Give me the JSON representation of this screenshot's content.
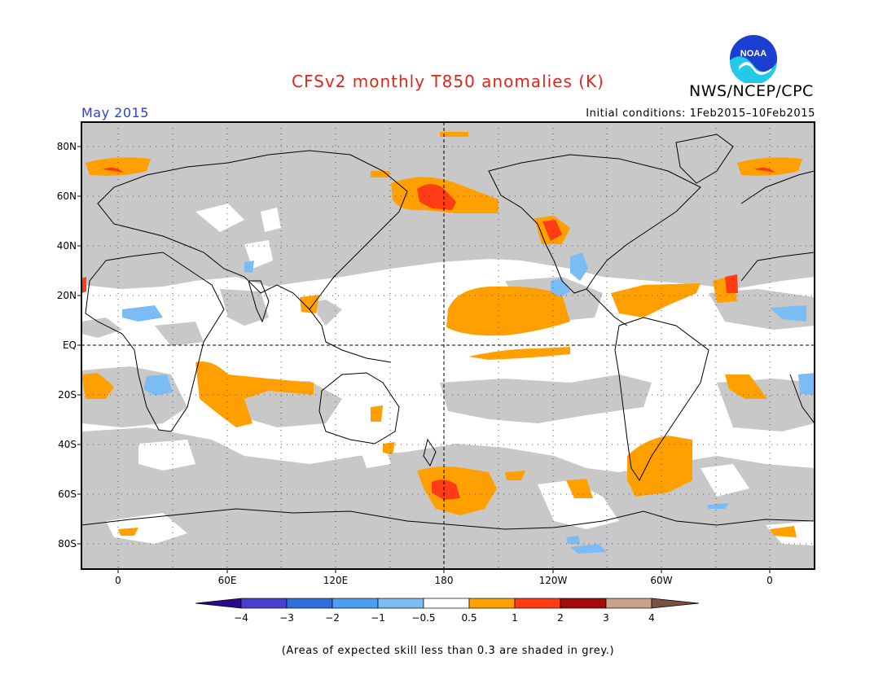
{
  "header": {
    "title": "CFSv2 monthly T850 anomalies (K)",
    "org": "NWS/NCEP/CPC",
    "logo_text": "NOAA",
    "month": "May 2015",
    "initial_conditions": "Initial conditions: 1Feb2015–10Feb2015"
  },
  "map": {
    "type": "global anomaly map",
    "projection": "cylindrical equidistant",
    "lon_range": [
      -20,
      380
    ],
    "lat_range": [
      -90,
      90
    ],
    "lat_ticks": [
      "80N",
      "60N",
      "40N",
      "20N",
      "EQ",
      "20S",
      "40S",
      "60S",
      "80S"
    ],
    "lon_ticks": [
      "0",
      "60E",
      "120E",
      "180",
      "120W",
      "60W",
      "0"
    ],
    "grid": "dotted 30-degree graticule, dashed equator and dateline",
    "skill_mask_color": "#c8c8c8",
    "features": [
      {
        "region": "Tropical central-east Pacific",
        "anomaly_range": "0.5 to 1"
      },
      {
        "region": "Bering Sea / Kamchatka",
        "anomaly_range": "1 to 2"
      },
      {
        "region": "US West coast",
        "anomaly_range": "1 to 2"
      },
      {
        "region": "Southwest Pacific near dateline 60S",
        "anomaly_range": "1 to 2"
      },
      {
        "region": "South Indian Ocean",
        "anomaly_range": "0.5 to 1"
      },
      {
        "region": "Southwest Atlantic off Argentina",
        "anomaly_range": "0.5 to 1"
      },
      {
        "region": "Mexico / Baja",
        "anomaly_range": "-1 to -0.5"
      }
    ]
  },
  "colorbar": {
    "labels": [
      "−4",
      "−3",
      "−2",
      "−1",
      "−0.5",
      "0.5",
      "1",
      "2",
      "3",
      "4"
    ],
    "colors": [
      "#2c0a8c",
      "#4a3fd0",
      "#2e6fdc",
      "#4c9ef0",
      "#7cbcf4",
      "#ffffff",
      "#ffa000",
      "#ff3c14",
      "#a50a0a",
      "#c8a08c",
      "#7a5040"
    ]
  },
  "footnote": "(Areas of expected skill less than 0.3 are shaded in grey.)"
}
